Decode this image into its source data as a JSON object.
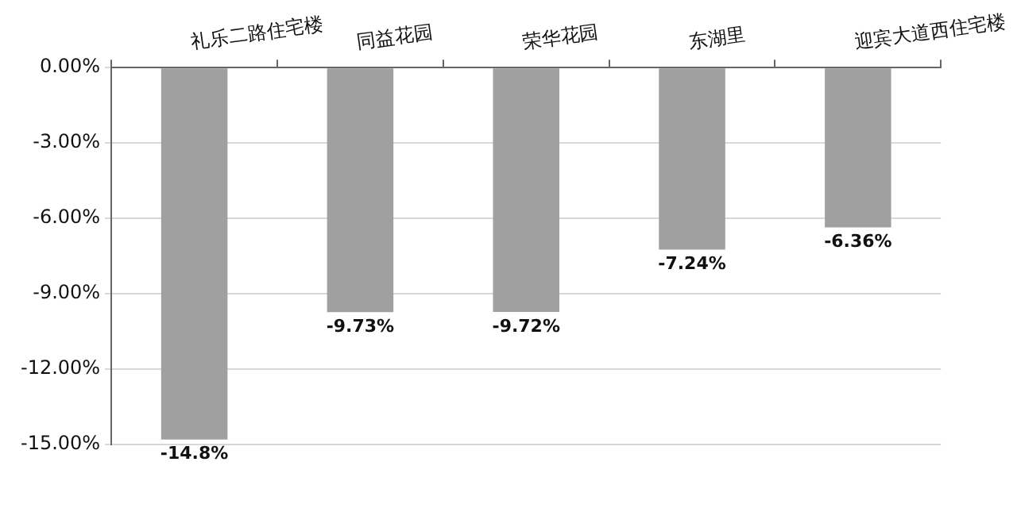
{
  "chart_data": {
    "type": "bar",
    "categories": [
      "礼乐二路住宅楼",
      "同益花园",
      "荣华花园",
      "东湖里",
      "迎宾大道西住宅楼"
    ],
    "values": [
      -14.8,
      -9.73,
      -9.72,
      -7.24,
      -6.36
    ],
    "color": "#a0a0a0",
    "value_labels": [
      "-14.8%",
      "-9.73%",
      "-9.72%",
      "-7.24%",
      "-6.36%"
    ],
    "ylim": [
      -15,
      0
    ],
    "yticks": [
      {
        "value": 0,
        "label": "0.00%"
      },
      {
        "value": -3,
        "label": "-3.00%"
      },
      {
        "value": -6,
        "label": "-6.00%"
      },
      {
        "value": -9,
        "label": "-9.00%"
      },
      {
        "value": -12,
        "label": "-12.00%"
      },
      {
        "value": -15,
        "label": "-15.00%"
      }
    ],
    "grid": "y"
  }
}
